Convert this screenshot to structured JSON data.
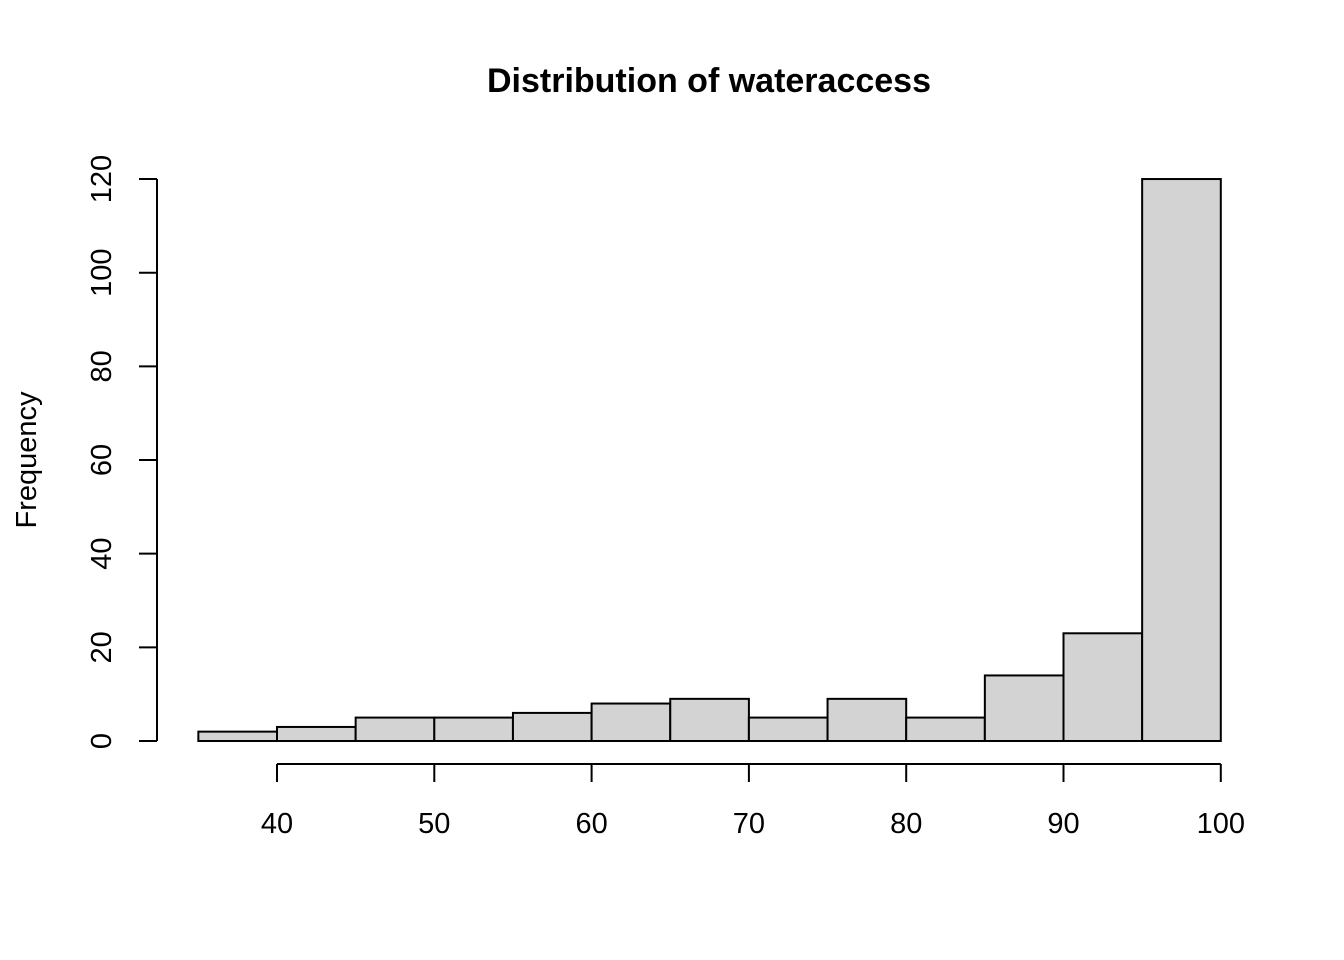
{
  "chart_data": {
    "type": "bar",
    "title": "Distribution of wateraccess",
    "xlabel": "",
    "ylabel": "Frequency",
    "bins": [
      {
        "start": 35,
        "end": 40,
        "count": 2
      },
      {
        "start": 40,
        "end": 45,
        "count": 3
      },
      {
        "start": 45,
        "end": 50,
        "count": 5
      },
      {
        "start": 50,
        "end": 55,
        "count": 5
      },
      {
        "start": 55,
        "end": 60,
        "count": 6
      },
      {
        "start": 60,
        "end": 65,
        "count": 8
      },
      {
        "start": 65,
        "end": 70,
        "count": 9
      },
      {
        "start": 70,
        "end": 75,
        "count": 5
      },
      {
        "start": 75,
        "end": 80,
        "count": 9
      },
      {
        "start": 80,
        "end": 85,
        "count": 5
      },
      {
        "start": 85,
        "end": 90,
        "count": 14
      },
      {
        "start": 90,
        "end": 95,
        "count": 23
      },
      {
        "start": 95,
        "end": 100,
        "count": 120
      }
    ],
    "xlim": [
      35,
      100
    ],
    "ylim": [
      0,
      120
    ],
    "x_ticks": [
      "40",
      "50",
      "60",
      "70",
      "80",
      "90",
      "100"
    ],
    "y_ticks": [
      "0",
      "20",
      "40",
      "60",
      "80",
      "100",
      "120"
    ],
    "grid": false,
    "bar_fill": "#d3d3d3",
    "bar_stroke": "#000000"
  }
}
